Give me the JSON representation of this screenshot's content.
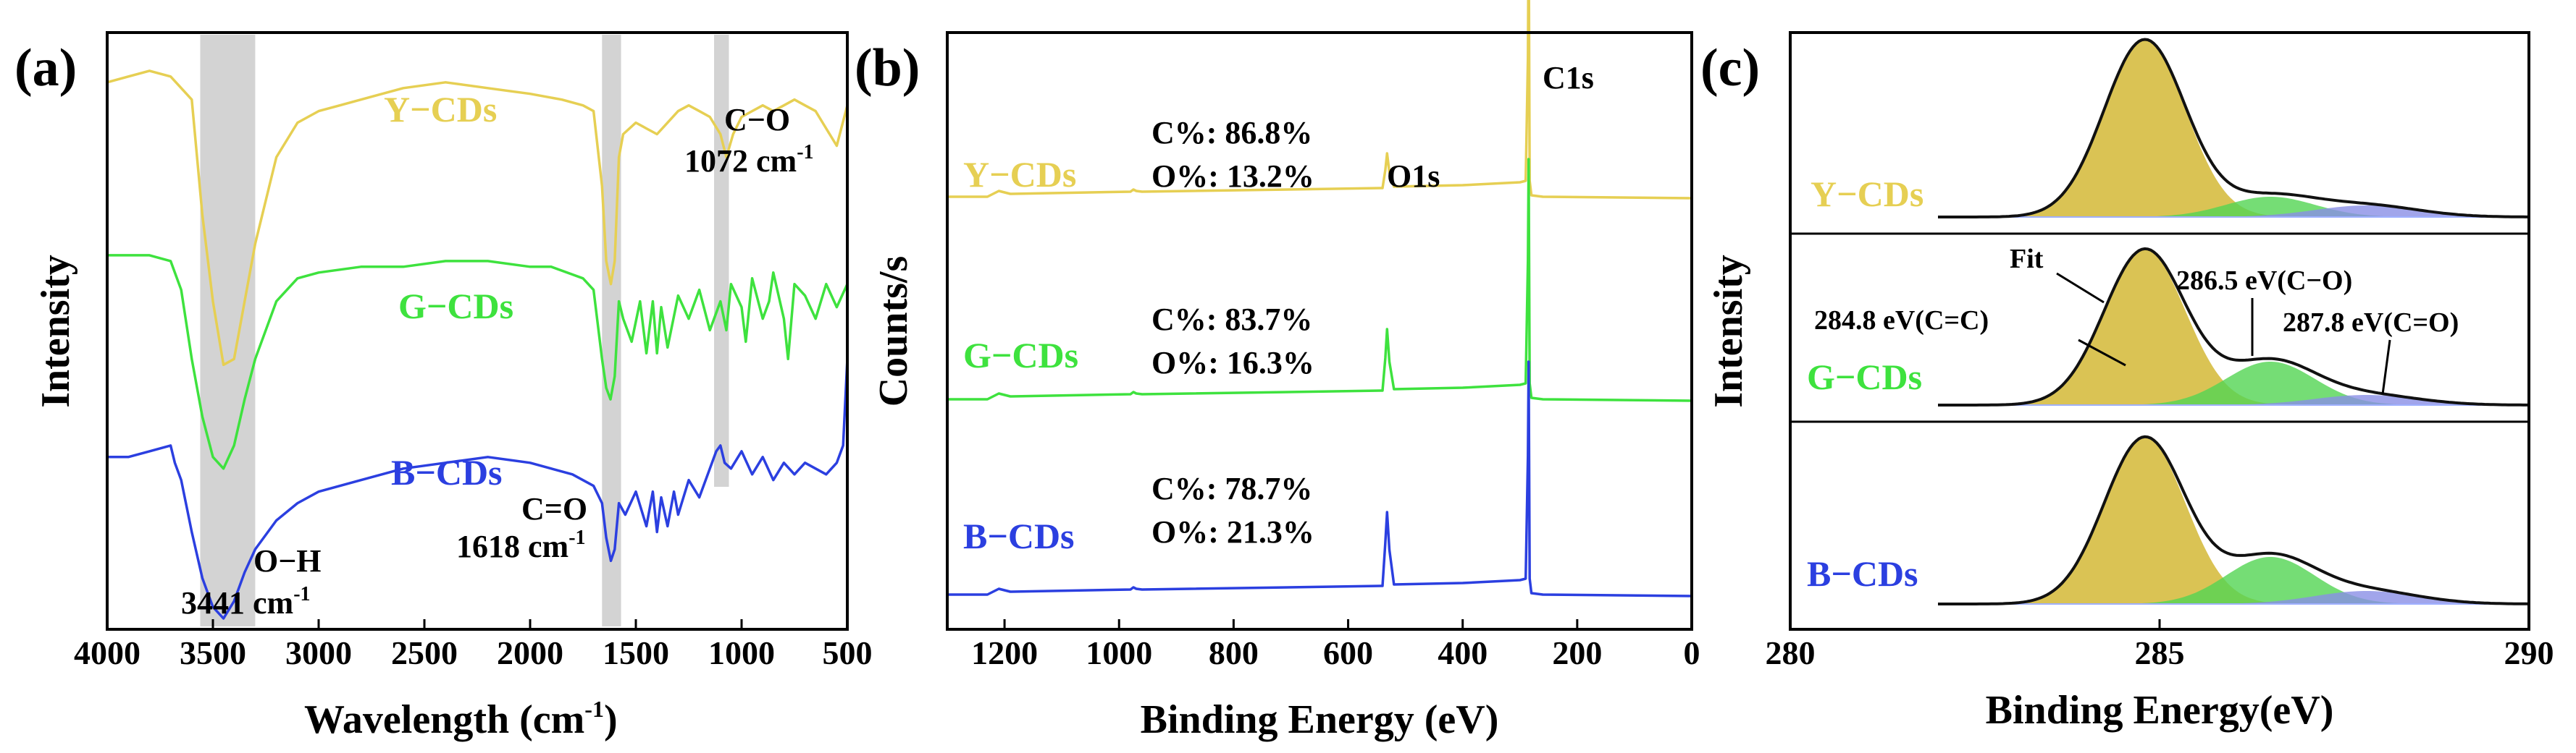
{
  "colors": {
    "yellow": "#e6cf53",
    "green": "#3ee23e",
    "blue": "#2b3fe0",
    "band": "#d3d3d3",
    "peak_fill": "#d4b936",
    "green_fill": "#52d452",
    "blue_fill": "#8a8ee6"
  },
  "chart_data": [
    {
      "panel": "(a)",
      "type": "line",
      "xlabel": "Wavelength (cm",
      "xlabel_sup": "-1",
      "xlabel_close": ")",
      "ylabel": "Intensity",
      "xlim": [
        4000,
        500
      ],
      "xticks": [
        "4000",
        "3500",
        "3000",
        "2500",
        "2000",
        "1500",
        "1000",
        "500"
      ],
      "bands": [
        [
          3560,
          3300
        ],
        [
          1660,
          1570
        ],
        [
          1130,
          1060
        ]
      ],
      "series": [
        {
          "name": "Y−CDs",
          "color_key": "yellow",
          "x": [
            4000,
            3900,
            3800,
            3700,
            3600,
            3550,
            3500,
            3450,
            3400,
            3350,
            3300,
            3200,
            3100,
            3000,
            2900,
            2800,
            2600,
            2400,
            2200,
            2000,
            1850,
            1750,
            1700,
            1660,
            1640,
            1618,
            1600,
            1580,
            1560,
            1500,
            1450,
            1400,
            1350,
            1300,
            1250,
            1200,
            1150,
            1100,
            1072,
            1040,
            1000,
            950,
            900,
            850,
            800,
            750,
            700,
            650,
            600,
            550,
            500
          ],
          "y": [
            93,
            94,
            95,
            94,
            90,
            70,
            55,
            44,
            45,
            55,
            65,
            80,
            86,
            88,
            89,
            90,
            92,
            93,
            92,
            91,
            90,
            89,
            88,
            75,
            62,
            58,
            62,
            80,
            84,
            86,
            85,
            84,
            86,
            88,
            89,
            88,
            87,
            84,
            80,
            84,
            87,
            88,
            89,
            88,
            89,
            90,
            89,
            88,
            85,
            82,
            89
          ]
        },
        {
          "name": "G−CDs",
          "color_key": "green",
          "x": [
            4000,
            3900,
            3800,
            3700,
            3650,
            3600,
            3550,
            3500,
            3450,
            3400,
            3350,
            3300,
            3200,
            3100,
            3000,
            2800,
            2600,
            2400,
            2200,
            2000,
            1900,
            1750,
            1700,
            1660,
            1640,
            1620,
            1600,
            1580,
            1560,
            1520,
            1480,
            1450,
            1420,
            1400,
            1380,
            1350,
            1300,
            1250,
            1200,
            1150,
            1100,
            1072,
            1050,
            1000,
            980,
            950,
            900,
            870,
            850,
            800,
            780,
            750,
            700,
            650,
            600,
            550,
            500
          ],
          "y": [
            63,
            63,
            63,
            62,
            57,
            45,
            35,
            28,
            26,
            30,
            38,
            45,
            55,
            59,
            60,
            61,
            61,
            62,
            62,
            61,
            61,
            59,
            57,
            45,
            40,
            38,
            42,
            55,
            52,
            48,
            55,
            46,
            55,
            46,
            54,
            47,
            56,
            52,
            57,
            50,
            55,
            50,
            58,
            54,
            48,
            59,
            52,
            55,
            60,
            52,
            45,
            58,
            56,
            52,
            58,
            54,
            58
          ]
        },
        {
          "name": "B−CDs",
          "color_key": "blue",
          "x": [
            4000,
            3900,
            3800,
            3700,
            3680,
            3650,
            3600,
            3550,
            3500,
            3450,
            3400,
            3350,
            3300,
            3200,
            3100,
            3000,
            2800,
            2600,
            2400,
            2200,
            2000,
            1900,
            1800,
            1700,
            1660,
            1640,
            1618,
            1600,
            1580,
            1550,
            1500,
            1450,
            1420,
            1400,
            1380,
            1350,
            1320,
            1300,
            1250,
            1200,
            1150,
            1120,
            1100,
            1080,
            1050,
            1000,
            950,
            900,
            850,
            800,
            750,
            700,
            650,
            600,
            550,
            520,
            500
          ],
          "y": [
            28,
            28,
            29,
            30,
            27,
            24,
            15,
            7,
            2,
            0,
            3,
            8,
            12,
            17,
            20,
            22,
            24,
            26,
            27,
            28,
            27,
            26,
            25,
            23,
            20,
            14,
            10,
            12,
            20,
            18,
            22,
            16,
            22,
            15,
            21,
            16,
            22,
            18,
            24,
            21,
            26,
            29,
            30,
            27,
            26,
            29,
            25,
            28,
            24,
            27,
            25,
            27,
            26,
            25,
            27,
            30,
            45
          ]
        }
      ],
      "annotations": [
        {
          "text": "O−H",
          "sub": "3441 cm",
          "sup": "-1"
        },
        {
          "text": "C=O",
          "sub": "1618 cm",
          "sup": "-1"
        },
        {
          "text": "C−O",
          "sub": "1072 cm",
          "sup": "-1"
        }
      ]
    },
    {
      "panel": "(b)",
      "type": "line",
      "xlabel": "Binding Energy (eV)",
      "ylabel": "Counts/s",
      "xlim": [
        1300,
        0
      ],
      "xticks": [
        "1200",
        "1000",
        "800",
        "600",
        "400",
        "200",
        "0"
      ],
      "series": [
        {
          "name": "Y−CDs",
          "color_key": "yellow",
          "offset": 580,
          "x": [
            1300,
            1230,
            1220,
            1210,
            1200,
            1190,
            980,
            975,
            970,
            960,
            540,
            535,
            532,
            528,
            520,
            400,
            300,
            290,
            286,
            284.8,
            283,
            280,
            260,
            0
          ],
          "y": [
            8,
            8,
            12,
            16,
            14,
            12,
            15,
            18,
            16,
            15,
            20,
            45,
            68,
            42,
            22,
            24,
            28,
            30,
            200,
            390,
            30,
            10,
            8,
            6
          ]
        },
        {
          "name": "G−CDs",
          "color_key": "green",
          "offset": 300,
          "x": [
            1300,
            1230,
            1220,
            1210,
            1200,
            1190,
            980,
            975,
            970,
            960,
            540,
            535,
            532,
            528,
            520,
            400,
            300,
            290,
            286,
            284.8,
            283,
            280,
            260,
            0
          ],
          "y": [
            8,
            8,
            12,
            16,
            14,
            12,
            15,
            18,
            16,
            15,
            20,
            65,
            105,
            60,
            22,
            24,
            28,
            30,
            200,
            340,
            30,
            10,
            8,
            6
          ]
        },
        {
          "name": "B−CDs",
          "color_key": "blue",
          "offset": 30,
          "x": [
            1300,
            1230,
            1220,
            1210,
            1200,
            1190,
            980,
            975,
            970,
            960,
            540,
            535,
            532,
            528,
            520,
            400,
            300,
            290,
            286,
            284.8,
            283,
            280,
            260,
            0
          ],
          "y": [
            8,
            8,
            12,
            16,
            14,
            12,
            15,
            18,
            16,
            15,
            20,
            80,
            122,
            70,
            22,
            24,
            28,
            30,
            200,
            330,
            30,
            10,
            8,
            6
          ]
        }
      ],
      "peak_labels": [
        "O1s",
        "C1s"
      ],
      "compositions": [
        {
          "c": "C%: 86.8%",
          "o": "O%: 13.2%"
        },
        {
          "c": "C%: 83.7%",
          "o": "O%: 16.3%"
        },
        {
          "c": "C%: 78.7%",
          "o": "O%: 21.3%"
        }
      ]
    },
    {
      "panel": "(c)",
      "type": "area",
      "xlabel": "Binding Energy(eV)",
      "ylabel": "Intensity",
      "xlim": [
        280,
        290
      ],
      "xticks": [
        "280",
        "285",
        "290"
      ],
      "components": [
        {
          "label": "284.8 eV(C=C)",
          "center": 284.8,
          "width": 0.55
        },
        {
          "label": "286.5 eV(C−O)",
          "center": 286.5,
          "width": 0.6
        },
        {
          "label": "287.8 eV(C=O)",
          "center": 287.8,
          "width": 0.7
        }
      ],
      "fit_label": "Fit",
      "series": [
        {
          "name": "Y−CDs",
          "color_key": "yellow",
          "offset": 560,
          "amplitudes": [
            245,
            28,
            16
          ]
        },
        {
          "name": "G−CDs",
          "color_key": "green",
          "offset": 300,
          "amplitudes": [
            215,
            60,
            14
          ]
        },
        {
          "name": "B−CDs",
          "color_key": "blue",
          "offset": 25,
          "amplitudes": [
            230,
            65,
            18
          ]
        }
      ]
    }
  ]
}
